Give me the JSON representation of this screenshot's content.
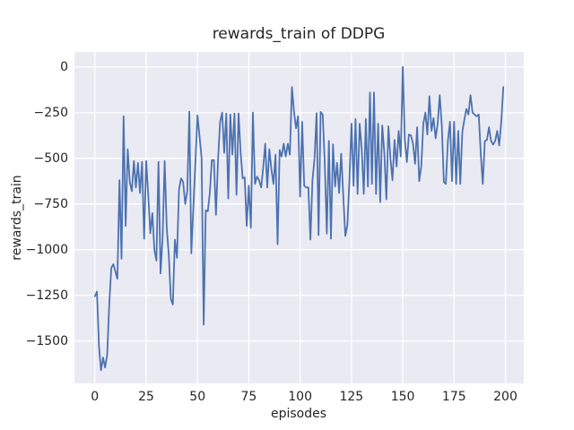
{
  "figure": {
    "title": "rewards_train of DDPG",
    "xlabel": "episodes",
    "ylabel": "rewards_train"
  },
  "chart_data": {
    "type": "line",
    "title": "rewards_train of DDPG",
    "xlabel": "episodes",
    "ylabel": "rewards_train",
    "x_ticks": [
      0,
      25,
      50,
      75,
      100,
      125,
      150,
      175,
      200
    ],
    "y_ticks": [
      0,
      -250,
      -500,
      -750,
      -1000,
      -1250,
      -1500
    ],
    "xlim": [
      -9.95,
      208.95
    ],
    "ylim": [
      -1732,
      82
    ],
    "grid": true,
    "legend_position": "none",
    "style": {
      "fig_bg": "#ffffff",
      "axes_bg": "#eaeaf2",
      "grid_color": "#ffffff",
      "line_color": "#4c72b0",
      "text_color": "#262626"
    },
    "series": [
      {
        "name": "rewards_train",
        "x_start": 0,
        "x_step": 1,
        "values": [
          -1255,
          -1230,
          -1530,
          -1660,
          -1590,
          -1645,
          -1575,
          -1300,
          -1100,
          -1080,
          -1120,
          -1160,
          -620,
          -1050,
          -270,
          -870,
          -450,
          -630,
          -680,
          -515,
          -660,
          -525,
          -690,
          -520,
          -940,
          -515,
          -700,
          -910,
          -800,
          -1000,
          -1060,
          -520,
          -1130,
          -930,
          -515,
          -880,
          -1030,
          -1270,
          -1300,
          -945,
          -1045,
          -670,
          -610,
          -630,
          -750,
          -680,
          -245,
          -1020,
          -770,
          -520,
          -265,
          -380,
          -500,
          -1410,
          -785,
          -790,
          -690,
          -510,
          -510,
          -810,
          -510,
          -300,
          -250,
          -470,
          -255,
          -720,
          -260,
          -480,
          -255,
          -700,
          -255,
          -470,
          -610,
          -605,
          -870,
          -650,
          -880,
          -250,
          -640,
          -600,
          -620,
          -660,
          -555,
          -420,
          -660,
          -450,
          -560,
          -640,
          -480,
          -970,
          -455,
          -490,
          -420,
          -490,
          -420,
          -480,
          -110,
          -245,
          -335,
          -270,
          -710,
          -300,
          -650,
          -660,
          -660,
          -945,
          -620,
          -500,
          -253,
          -920,
          -246,
          -260,
          -525,
          -912,
          -405,
          -940,
          -424,
          -655,
          -525,
          -690,
          -475,
          -700,
          -925,
          -865,
          -620,
          -310,
          -650,
          -285,
          -695,
          -310,
          -450,
          -695,
          -285,
          -655,
          -140,
          -640,
          -140,
          -695,
          -310,
          -740,
          -320,
          -470,
          -725,
          -325,
          -500,
          -620,
          -400,
          -545,
          -350,
          -490,
          0,
          -400,
          -520,
          -370,
          -375,
          -420,
          -530,
          -330,
          -625,
          -545,
          -310,
          -250,
          -370,
          -160,
          -350,
          -280,
          -390,
          -310,
          -155,
          -320,
          -630,
          -640,
          -405,
          -300,
          -625,
          -300,
          -640,
          -350,
          -640,
          -355,
          -290,
          -230,
          -260,
          -155,
          -250,
          -260,
          -270,
          -260,
          -480,
          -640,
          -405,
          -400,
          -330,
          -405,
          -425,
          -405,
          -350,
          -430,
          -300,
          -110
        ]
      }
    ]
  }
}
